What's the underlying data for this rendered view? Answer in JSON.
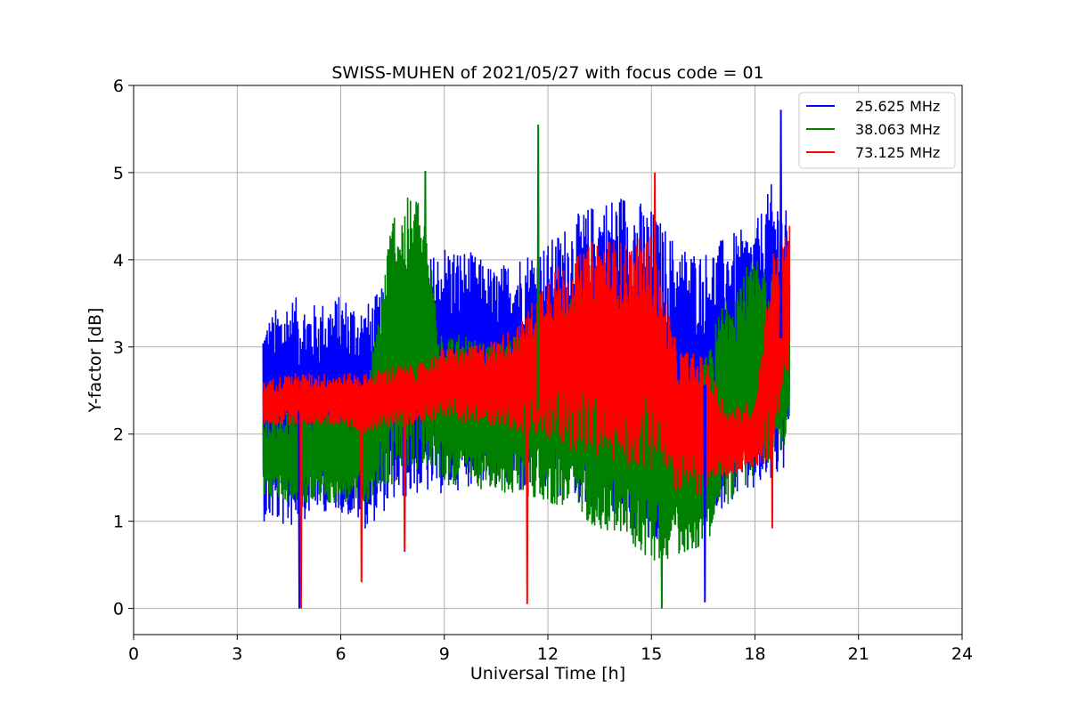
{
  "chart_data": {
    "type": "line",
    "title": "SWISS-MUHEN of 2021/05/27 with focus code = 01",
    "xlabel": "Universal Time [h]",
    "ylabel": "Y-factor [dB]",
    "xlim": [
      0,
      24
    ],
    "ylim": [
      -0.3,
      6
    ],
    "xticks": [
      0,
      3,
      6,
      9,
      12,
      15,
      18,
      21,
      24
    ],
    "yticks": [
      0,
      1,
      2,
      3,
      4,
      5,
      6
    ],
    "grid": true,
    "legend_position": "top-right",
    "series": [
      {
        "name": "25.625 MHz",
        "color": "#0000ff",
        "x": [
          3.75,
          4.5,
          5.25,
          6.0,
          6.75,
          7.5,
          8.25,
          9.0,
          9.75,
          10.5,
          11.25,
          12.0,
          12.75,
          13.5,
          14.25,
          15.0,
          15.75,
          16.5,
          17.25,
          18.0,
          18.5,
          19.0
        ],
        "low": [
          1.0,
          0.9,
          1.1,
          1.1,
          0.9,
          1.2,
          1.3,
          1.3,
          1.4,
          1.4,
          1.3,
          1.3,
          1.2,
          1.1,
          1.0,
          0.6,
          0.9,
          1.0,
          1.2,
          1.3,
          1.4,
          1.6
        ],
        "high": [
          3.3,
          3.6,
          3.5,
          3.6,
          3.5,
          3.8,
          3.9,
          4.2,
          4.1,
          3.9,
          4.1,
          4.2,
          4.5,
          4.7,
          4.8,
          4.6,
          4.2,
          4.1,
          4.3,
          4.4,
          4.9,
          4.5
        ]
      },
      {
        "name": "38.063 MHz",
        "color": "#008000",
        "x": [
          3.75,
          4.5,
          5.25,
          6.0,
          6.75,
          7.5,
          8.25,
          9.0,
          9.75,
          10.5,
          11.25,
          12.0,
          12.75,
          13.5,
          14.25,
          15.0,
          15.75,
          16.5,
          17.25,
          18.0,
          18.5,
          19.0
        ],
        "low": [
          1.3,
          1.2,
          1.2,
          1.2,
          1.2,
          1.4,
          1.6,
          1.4,
          1.4,
          1.3,
          1.3,
          1.2,
          1.1,
          0.9,
          0.8,
          0.5,
          0.6,
          0.7,
          1.2,
          1.5,
          1.7,
          1.9
        ],
        "high": [
          2.2,
          2.3,
          2.4,
          2.4,
          2.5,
          4.6,
          4.8,
          3.2,
          3.1,
          3.0,
          3.2,
          3.4,
          3.6,
          3.7,
          3.6,
          3.3,
          2.7,
          2.8,
          3.8,
          4.0,
          3.9,
          3.7
        ]
      },
      {
        "name": "73.125 MHz",
        "color": "#ff0000",
        "x": [
          3.75,
          4.5,
          5.25,
          6.0,
          6.75,
          7.5,
          8.25,
          9.0,
          9.75,
          10.5,
          11.25,
          12.0,
          12.75,
          13.5,
          14.25,
          15.0,
          15.75,
          16.5,
          17.25,
          18.0,
          18.5,
          19.0
        ],
        "low": [
          2.1,
          2.1,
          2.1,
          2.1,
          2.0,
          2.1,
          2.1,
          2.2,
          2.1,
          2.1,
          2.0,
          1.9,
          1.8,
          1.7,
          1.6,
          1.6,
          1.3,
          1.3,
          1.5,
          1.6,
          1.7,
          2.8
        ],
        "high": [
          2.6,
          2.7,
          2.7,
          2.7,
          2.7,
          2.8,
          2.8,
          3.0,
          3.0,
          3.1,
          3.3,
          3.9,
          4.0,
          4.3,
          4.2,
          4.3,
          3.0,
          2.9,
          2.3,
          2.4,
          4.1,
          4.4
        ]
      }
    ],
    "spikes": [
      {
        "series": 0,
        "x": 4.8,
        "y": 0.0
      },
      {
        "series": 2,
        "x": 4.85,
        "y": 0.0
      },
      {
        "series": 2,
        "x": 6.6,
        "y": 0.3
      },
      {
        "series": 2,
        "x": 7.85,
        "y": 0.65
      },
      {
        "series": 1,
        "x": 8.45,
        "y": 5.02
      },
      {
        "series": 2,
        "x": 11.4,
        "y": 0.05
      },
      {
        "series": 1,
        "x": 11.72,
        "y": 5.55
      },
      {
        "series": 2,
        "x": 15.1,
        "y": 5.0
      },
      {
        "series": 1,
        "x": 15.3,
        "y": 0.0
      },
      {
        "series": 0,
        "x": 16.55,
        "y": 0.07
      },
      {
        "series": 0,
        "x": 18.75,
        "y": 5.72
      },
      {
        "series": 2,
        "x": 18.5,
        "y": 0.92
      }
    ]
  }
}
